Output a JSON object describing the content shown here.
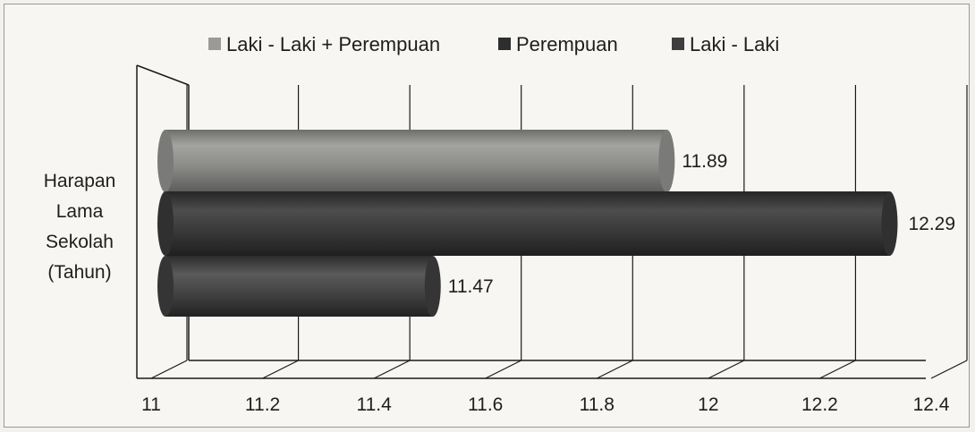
{
  "chart_data": {
    "type": "bar",
    "orientation": "horizontal",
    "style": "3d-cylinder",
    "categories": [
      "Harapan Lama Sekolah (Tahun)"
    ],
    "series": [
      {
        "name": "Laki - Laki + Perempuan",
        "values": [
          11.89
        ],
        "color": "#8a8a88"
      },
      {
        "name": "Perempuan",
        "values": [
          12.29
        ],
        "color": "#3a3a3a"
      },
      {
        "name": "Laki - Laki",
        "values": [
          11.47
        ],
        "color": "#4a4a4a"
      }
    ],
    "legend": [
      "Laki - Laki + Perempuan",
      "Perempuan",
      "Laki - Laki"
    ],
    "category_label_lines": [
      "Harapan",
      "Lama",
      "Sekolah",
      "(Tahun)"
    ],
    "xlim": [
      11,
      12.4
    ],
    "xticks": [
      "11",
      "11.2",
      "11.4",
      "11.6",
      "11.8",
      "12",
      "12.2",
      "12.4"
    ],
    "data_labels": [
      "11.89",
      "12.29",
      "11.47"
    ],
    "grid": true,
    "legend_position": "top"
  }
}
